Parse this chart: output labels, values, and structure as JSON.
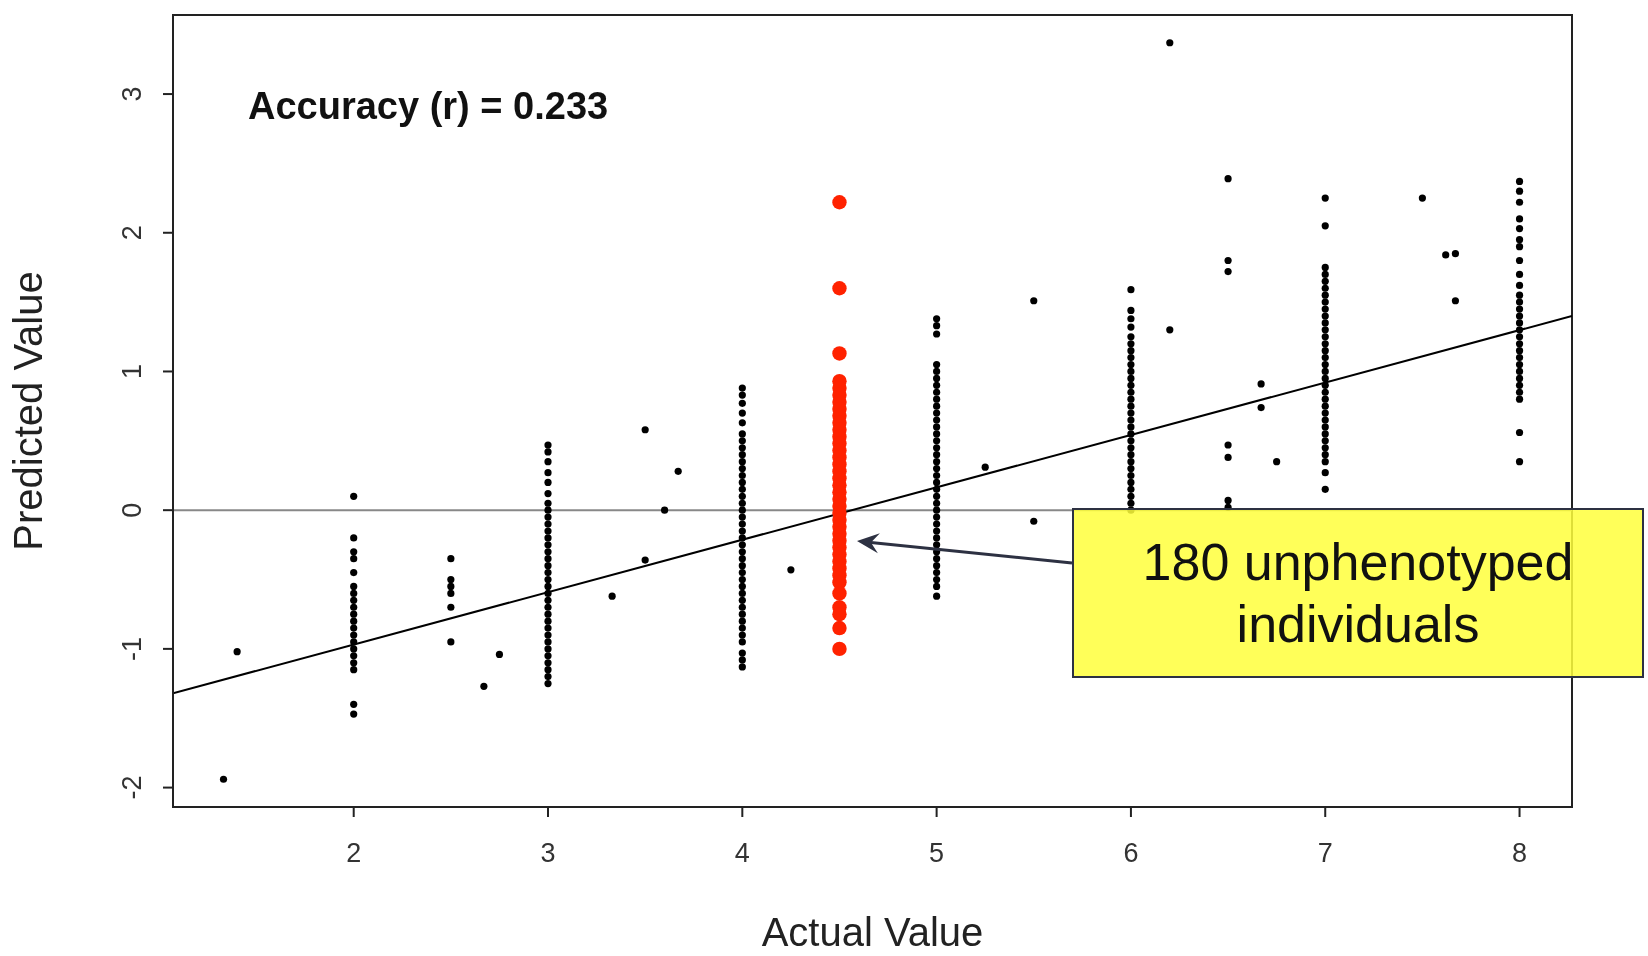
{
  "chart_data": {
    "type": "scatter",
    "xlabel": "Actual Value",
    "ylabel": "Predicted Value",
    "xlim": [
      1.07,
      8.27
    ],
    "ylim": [
      -2.14,
      3.57
    ],
    "xticks": [
      2,
      3,
      4,
      5,
      6,
      7,
      8
    ],
    "yticks": [
      -2,
      -1,
      0,
      1,
      2,
      3
    ],
    "legend": false,
    "marker": "circle",
    "annotations": [
      "Accuracy (r) = 0.233",
      "180 unphenotyped individuals"
    ],
    "ref_lines": [
      {
        "axis": "y",
        "value": 0,
        "color": "#888888"
      }
    ],
    "series": [
      {
        "color": "#000000",
        "x": [
          1.33,
          1.4,
          2,
          2,
          2,
          2,
          2,
          2,
          2,
          2,
          2,
          2,
          2,
          2,
          2,
          2,
          2,
          2,
          2,
          2,
          2,
          2,
          2.5,
          2.5,
          2.5,
          2.5,
          2.5,
          2.5,
          2.67,
          2.75,
          3,
          3,
          3,
          3,
          3,
          3,
          3,
          3,
          3,
          3,
          3,
          3,
          3,
          3,
          3,
          3,
          3,
          3,
          3,
          3,
          3,
          3,
          3,
          3,
          3,
          3,
          3,
          3,
          3,
          3,
          3,
          3,
          3,
          3.33,
          3.5,
          3.5,
          3.6,
          3.67,
          4,
          4,
          4,
          4,
          4,
          4,
          4,
          4,
          4,
          4,
          4,
          4,
          4,
          4,
          4,
          4,
          4,
          4,
          4,
          4,
          4,
          4,
          4,
          4,
          4,
          4,
          4,
          4,
          4,
          4,
          4,
          4,
          4,
          4,
          4,
          4,
          4,
          4,
          4,
          4.25,
          5,
          5,
          5,
          5,
          5,
          5,
          5,
          5,
          5,
          5,
          5,
          5,
          5,
          5,
          5,
          5,
          5,
          5,
          5,
          5,
          5,
          5,
          5,
          5,
          5,
          5,
          5,
          5,
          5,
          5,
          5,
          5,
          5,
          5,
          5,
          5,
          5,
          5.25,
          5.5,
          5.5,
          6,
          6,
          6,
          6,
          6,
          6,
          6,
          6,
          6,
          6,
          6,
          6,
          6,
          6,
          6,
          6,
          6,
          6,
          6,
          6,
          6,
          6,
          6,
          6,
          6,
          6,
          6,
          6,
          6,
          6,
          6.2,
          6.2,
          6.5,
          6.5,
          6.5,
          6.5,
          6.5,
          6.5,
          6.5,
          6.67,
          6.67,
          6.75,
          7,
          7,
          7,
          7,
          7,
          7,
          7,
          7,
          7,
          7,
          7,
          7,
          7,
          7,
          7,
          7,
          7,
          7,
          7,
          7,
          7,
          7,
          7,
          7,
          7,
          7,
          7,
          7,
          7,
          7,
          7,
          7,
          7,
          7.5,
          7.62,
          7.67,
          7.67,
          8,
          8,
          8,
          8,
          8,
          8,
          8,
          8,
          8,
          8,
          8,
          8,
          8,
          8,
          8,
          8,
          8,
          8,
          8,
          8,
          8,
          8,
          8,
          8,
          8,
          8,
          8,
          8
        ],
        "values": [
          -1.94,
          -1.02,
          0.1,
          -0.2,
          -0.3,
          -0.35,
          -0.45,
          -0.55,
          -0.6,
          -0.65,
          -0.7,
          -0.75,
          -0.8,
          -0.85,
          -0.9,
          -0.95,
          -1.0,
          -1.05,
          -1.1,
          -1.15,
          -1.4,
          -1.47,
          -0.35,
          -0.5,
          -0.55,
          -0.6,
          -0.7,
          -0.95,
          -1.27,
          -1.04,
          0.47,
          0.42,
          0.35,
          0.27,
          0.2,
          0.12,
          0.05,
          0,
          -0.05,
          -0.1,
          -0.15,
          -0.2,
          -0.25,
          -0.3,
          -0.35,
          -0.4,
          -0.45,
          -0.5,
          -0.55,
          -0.6,
          -0.65,
          -0.7,
          -0.75,
          -0.8,
          -0.85,
          -0.9,
          -0.95,
          -1,
          -1.05,
          -1.1,
          -1.15,
          -1.2,
          -1.25,
          -0.62,
          0.58,
          -0.36,
          0.0,
          0.28,
          0.88,
          0.83,
          0.77,
          0.7,
          0.63,
          0.55,
          0.5,
          0.45,
          0.4,
          0.35,
          0.3,
          0.25,
          0.2,
          0.15,
          0.1,
          0.05,
          0,
          -0.05,
          -0.1,
          -0.15,
          -0.2,
          -0.25,
          -0.3,
          -0.35,
          -0.4,
          -0.45,
          -0.5,
          -0.55,
          -0.6,
          -0.65,
          -0.7,
          -0.75,
          -0.8,
          -0.85,
          -0.9,
          -0.95,
          -1.03,
          -1.08,
          -1.13,
          -0.43,
          1.38,
          1.33,
          1.27,
          1.05,
          1,
          0.95,
          0.9,
          0.85,
          0.8,
          0.75,
          0.7,
          0.65,
          0.6,
          0.55,
          0.5,
          0.45,
          0.4,
          0.35,
          0.3,
          0.25,
          0.2,
          0.15,
          0.1,
          0.05,
          0,
          -0.05,
          -0.1,
          -0.15,
          -0.2,
          -0.25,
          -0.3,
          -0.35,
          -0.4,
          -0.45,
          -0.5,
          -0.55,
          -0.62,
          0.31,
          1.51,
          -0.08,
          1.59,
          1.44,
          1.38,
          1.32,
          1.25,
          1.2,
          1.15,
          1.1,
          1.05,
          1,
          0.95,
          0.9,
          0.85,
          0.8,
          0.75,
          0.7,
          0.65,
          0.6,
          0.55,
          0.5,
          0.45,
          0.4,
          0.35,
          0.3,
          0.25,
          0.2,
          0.15,
          0.1,
          0.05,
          0,
          3.37,
          1.3,
          2.39,
          1.8,
          1.72,
          0.47,
          0.38,
          0.07,
          0.02,
          0.91,
          0.74,
          0.35,
          2.25,
          2.05,
          1.75,
          1.7,
          1.65,
          1.6,
          1.55,
          1.5,
          1.45,
          1.4,
          1.35,
          1.3,
          1.25,
          1.2,
          1.15,
          1.1,
          1.05,
          1,
          0.95,
          0.9,
          0.85,
          0.8,
          0.75,
          0.7,
          0.65,
          0.6,
          0.55,
          0.5,
          0.45,
          0.4,
          0.35,
          0.27,
          0.15,
          2.25,
          1.84,
          1.85,
          1.51,
          2.37,
          2.3,
          2.22,
          2.1,
          2.03,
          1.95,
          1.9,
          1.8,
          1.7,
          1.62,
          1.55,
          1.5,
          1.45,
          1.4,
          1.35,
          1.3,
          1.25,
          1.2,
          1.15,
          1.1,
          1.05,
          1,
          0.95,
          0.9,
          0.85,
          0.8,
          0.56,
          0.35
        ]
      },
      {
        "color": "#ff2200",
        "x": [
          4.5,
          4.5,
          4.5,
          4.5,
          4.5,
          4.5,
          4.5,
          4.5,
          4.5,
          4.5,
          4.5,
          4.5,
          4.5,
          4.5,
          4.5,
          4.5,
          4.5,
          4.5,
          4.5,
          4.5,
          4.5,
          4.5,
          4.5,
          4.5,
          4.5,
          4.5,
          4.5,
          4.5,
          4.5,
          4.5,
          4.5,
          4.5,
          4.5,
          4.5,
          4.5,
          4.5,
          4.5,
          4.5
        ],
        "values": [
          2.22,
          1.6,
          1.13,
          0.93,
          0.88,
          0.83,
          0.78,
          0.73,
          0.68,
          0.63,
          0.58,
          0.53,
          0.48,
          0.43,
          0.38,
          0.33,
          0.28,
          0.23,
          0.18,
          0.13,
          0.08,
          0.03,
          -0.02,
          -0.07,
          -0.12,
          -0.17,
          -0.22,
          -0.27,
          -0.32,
          -0.37,
          -0.42,
          -0.47,
          -0.52,
          -0.6,
          -0.7,
          -0.75,
          -0.85,
          -1.0
        ]
      },
      {
        "type": "line",
        "color": "#000000",
        "marker": "none",
        "x": [
          1.07,
          8.27
        ],
        "values": [
          -1.32,
          1.4
        ]
      }
    ]
  }
}
